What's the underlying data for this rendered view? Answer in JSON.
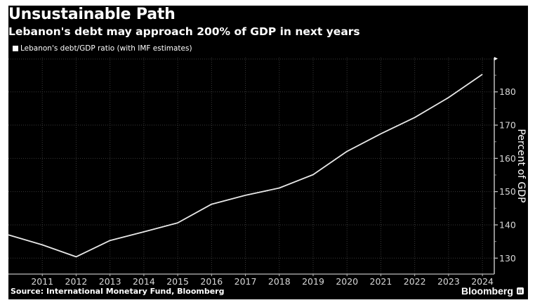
{
  "header": {
    "title": "Unsustainable Path",
    "subtitle": "Lebanon's debt may approach 200% of GDP in next years"
  },
  "legend": {
    "items": [
      {
        "label": "Lebanon's debt/GDP ratio (with IMF estimates)",
        "color": "#ffffff"
      }
    ]
  },
  "footer": {
    "source": "Source: International Monetary Fund, Bloomberg",
    "brand": "Bloomberg"
  },
  "colors": {
    "background": "#000000",
    "line": "#e8e8e8",
    "grid": "#3a3a3a",
    "text": "#ffffff"
  },
  "chart_data": {
    "type": "line",
    "title": "Unsustainable Path",
    "subtitle": "Lebanon's debt may approach 200% of GDP in next years",
    "xlabel": "",
    "ylabel": "Percent of GDP",
    "x": [
      2010,
      2011,
      2012,
      2013,
      2014,
      2015,
      2016,
      2017,
      2018,
      2019,
      2020,
      2021,
      2022,
      2023,
      2024
    ],
    "x_tick_labels": [
      "2011",
      "2012",
      "2013",
      "2014",
      "2015",
      "2016",
      "2017",
      "2018",
      "2019",
      "2020",
      "2021",
      "2022",
      "2023",
      "2024"
    ],
    "series": [
      {
        "name": "Lebanon's debt/GDP ratio (with IMF estimates)",
        "values": [
          137.0,
          134.0,
          130.4,
          135.3,
          137.9,
          140.6,
          146.2,
          148.9,
          151.1,
          155.1,
          162.1,
          167.4,
          172.3,
          178.3,
          185.3
        ]
      }
    ],
    "y_ticks": [
      130,
      140,
      150,
      160,
      170,
      180
    ],
    "y_tick_labels": [
      "130",
      "140",
      "150",
      "160",
      "170",
      "180"
    ],
    "xlim": [
      2010,
      2024.35
    ],
    "ylim": [
      125.2,
      190.3
    ],
    "y_axis_side": "right",
    "grid": true,
    "legend_position": "top-left",
    "source": "Source: International Monetary Fund, Bloomberg"
  }
}
